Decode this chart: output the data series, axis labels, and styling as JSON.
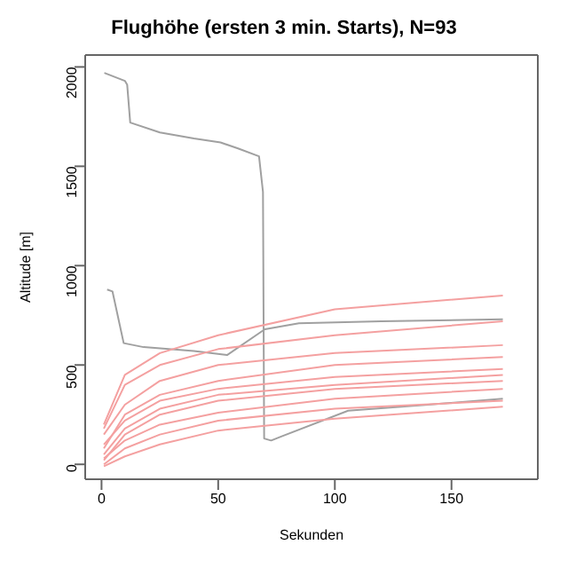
{
  "chart_data": {
    "type": "line",
    "title": "Flughöhe (ersten 3 min. Starts), N=93",
    "xlabel": "Sekunden",
    "ylabel": "Altitude [m]",
    "xlim": [
      -7,
      187
    ],
    "ylim": [
      -75,
      2060
    ],
    "xticks": [
      0,
      50,
      100,
      150
    ],
    "yticks": [
      0,
      500,
      1000,
      1500,
      2000
    ],
    "marker": "none",
    "line_style": "solid",
    "series": [
      {
        "color": "#a0a0a0",
        "x": [
          1.2,
          10,
          11,
          12.3,
          25,
          39.6,
          51,
          58.5,
          67.5,
          69.2,
          69.7,
          72.7,
          77,
          105.7,
          140,
          172
        ],
        "values": [
          1970,
          1930,
          1910,
          1720,
          1670,
          1640,
          1620,
          1590,
          1550,
          1370,
          130,
          120,
          140,
          270,
          300,
          330
        ]
      },
      {
        "color": "#a0a0a0",
        "x": [
          2.4,
          4.7,
          9.5,
          18,
          39.6,
          53.8,
          70,
          84.6,
          120,
          172
        ],
        "values": [
          880,
          870,
          610,
          590,
          570,
          550,
          680,
          710,
          720,
          730
        ]
      },
      {
        "color": "#f4a0a0",
        "x": [
          1,
          10,
          25,
          50,
          100,
          172
        ],
        "values": [
          0,
          80,
          150,
          220,
          280,
          320
        ]
      },
      {
        "color": "#f4a0a0",
        "x": [
          1,
          10,
          25,
          50,
          100,
          172
        ],
        "values": [
          20,
          150,
          250,
          320,
          380,
          420
        ]
      },
      {
        "color": "#f4a0a0",
        "x": [
          1,
          10,
          25,
          50,
          100,
          172
        ],
        "values": [
          -10,
          40,
          100,
          170,
          230,
          290
        ]
      },
      {
        "color": "#f4a0a0",
        "x": [
          1,
          10,
          25,
          50,
          100,
          172
        ],
        "values": [
          100,
          220,
          320,
          380,
          440,
          480
        ]
      },
      {
        "color": "#f4a0a0",
        "x": [
          1,
          10,
          25,
          50,
          100,
          172
        ],
        "values": [
          150,
          300,
          420,
          500,
          560,
          600
        ]
      },
      {
        "color": "#f4a0a0",
        "x": [
          1,
          10,
          25,
          50,
          100,
          172
        ],
        "values": [
          50,
          180,
          280,
          350,
          400,
          450
        ]
      },
      {
        "color": "#f4a0a0",
        "x": [
          1,
          10,
          25,
          50,
          100,
          172
        ],
        "values": [
          180,
          400,
          500,
          580,
          650,
          720
        ]
      },
      {
        "color": "#f4a0a0",
        "x": [
          1,
          10,
          25,
          50,
          100,
          172
        ],
        "values": [
          30,
          120,
          200,
          260,
          330,
          380
        ]
      },
      {
        "color": "#f4a0a0",
        "x": [
          1,
          10,
          25,
          50,
          100,
          172
        ],
        "values": [
          200,
          450,
          560,
          650,
          780,
          850
        ]
      },
      {
        "color": "#f4a0a0",
        "x": [
          1,
          10,
          25,
          50,
          100,
          172
        ],
        "values": [
          80,
          250,
          350,
          420,
          500,
          540
        ]
      }
    ]
  }
}
